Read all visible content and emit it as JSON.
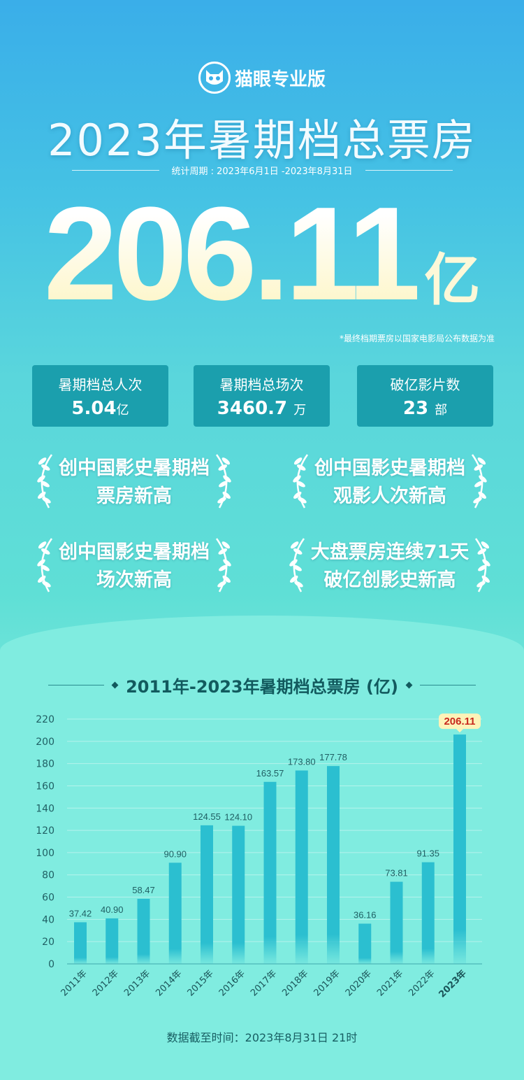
{
  "brand": {
    "name": "猫眼专业版",
    "icon": "cat-icon"
  },
  "header": {
    "title": "2023年暑期档总票房",
    "period": "统计周期 : 2023年6月1日 -2023年8月31日"
  },
  "headline": {
    "value": "206.11",
    "unit": "亿",
    "note": "*最终档期票房以国家电影局公布数据为准"
  },
  "stats": [
    {
      "label": "暑期档总人次",
      "value": "5.04",
      "unit": "亿"
    },
    {
      "label": "暑期档总场次",
      "value": "3460.7",
      "unit": "万"
    },
    {
      "label": "破亿影片数",
      "value": "23",
      "unit": "部"
    }
  ],
  "honors": [
    {
      "line1": "创中国影史暑期档",
      "line2": "票房新高"
    },
    {
      "line1": "创中国影史暑期档",
      "line2": "观影人次新高"
    },
    {
      "line1": "创中国影史暑期档",
      "line2": "场次新高"
    },
    {
      "line1": "大盘票房连续71天",
      "line2": "破亿创影史新高"
    }
  ],
  "colors": {
    "bar": "#2bbfd0",
    "highlight_label": "#c8281e",
    "stat_box": "#1b9fad"
  },
  "chart_data": {
    "type": "bar",
    "title": "2011年-2023年暑期档总票房 (亿)",
    "categories": [
      "2011年",
      "2012年",
      "2013年",
      "2014年",
      "2015年",
      "2016年",
      "2017年",
      "2018年",
      "2019年",
      "2020年",
      "2021年",
      "2022年",
      "2023年"
    ],
    "values": [
      37.42,
      40.9,
      58.47,
      90.9,
      124.55,
      124.1,
      163.57,
      173.8,
      177.78,
      36.16,
      73.81,
      91.35,
      206.11
    ],
    "value_labels": [
      "37.42",
      "40.90",
      "58.47",
      "90.90",
      "124.55",
      "124.10",
      "163.57",
      "173.80",
      "177.78",
      "36.16",
      "73.81",
      "91.35",
      "206.11"
    ],
    "yticks": [
      "0",
      "20",
      "40",
      "60",
      "80",
      "100",
      "120",
      "140",
      "160",
      "180",
      "200",
      "220"
    ],
    "ylim": [
      0,
      220
    ],
    "grid": true,
    "highlight": "2023年"
  },
  "footer": "数据截至时间：2023年8月31日  21时"
}
